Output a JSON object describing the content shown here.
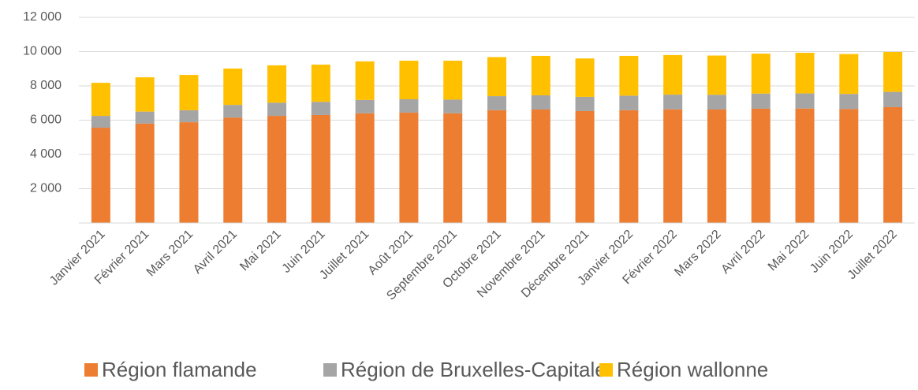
{
  "chart_data": {
    "type": "stacked_bar",
    "categories": [
      "Janvier 2021",
      "Février 2021",
      "Mars 2021",
      "Avril 2021",
      "Mai 2021",
      "Juin 2021",
      "Juillet 2021",
      "Août 2021",
      "Septembre 2021",
      "Octobre 2021",
      "Novembre 2021",
      "Décembre 2021",
      "Janvier 2022",
      "Février 2022",
      "Mars 2022",
      "Avril 2022",
      "Mai 2022",
      "Juin 2022",
      "Juillet 2022"
    ],
    "series": [
      {
        "name": "Région flamande",
        "color": "#ed7d31",
        "values": [
          5560,
          5800,
          5880,
          6150,
          6250,
          6300,
          6400,
          6440,
          6400,
          6580,
          6620,
          6530,
          6580,
          6630,
          6620,
          6670,
          6680,
          6650,
          6760
        ]
      },
      {
        "name": "Région de Bruxelles-Capitale",
        "color": "#a5a5a5",
        "values": [
          690,
          700,
          700,
          740,
          770,
          770,
          780,
          780,
          800,
          820,
          830,
          830,
          850,
          860,
          860,
          880,
          880,
          880,
          890
        ]
      },
      {
        "name": "Région wallonne",
        "color": "#ffc000",
        "values": [
          1930,
          2000,
          2060,
          2120,
          2180,
          2170,
          2250,
          2250,
          2270,
          2280,
          2300,
          2240,
          2320,
          2310,
          2290,
          2330,
          2370,
          2330,
          2330
        ]
      }
    ],
    "ylim": [
      0,
      12000
    ],
    "yticks": [
      {
        "value": 2000,
        "label": "2 000"
      },
      {
        "value": 4000,
        "label": "4 000"
      },
      {
        "value": 6000,
        "label": "6 000"
      },
      {
        "value": 8000,
        "label": "8 000"
      },
      {
        "value": 10000,
        "label": "10 000"
      },
      {
        "value": 12000,
        "label": "12 000"
      }
    ],
    "grid": true,
    "legend": "bottom"
  }
}
